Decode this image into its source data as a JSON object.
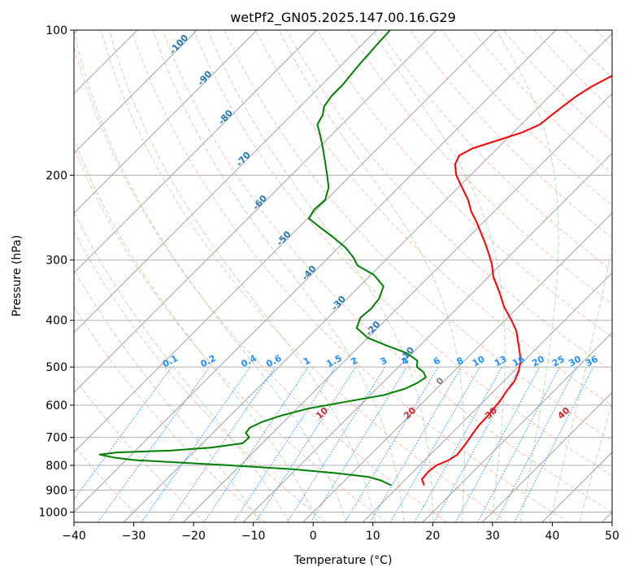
{
  "chart_data": {
    "type": "skew-t log-p",
    "title": "wetPf2_GN05.2025.147.00.16.G29",
    "xlabel": "Temperature (°C)",
    "ylabel": "Pressure (hPa)",
    "xlim": [
      -40,
      50
    ],
    "ylim_hpa": [
      1050,
      100
    ],
    "x_ticks": [
      -40,
      -30,
      -20,
      -10,
      0,
      10,
      20,
      30,
      40,
      50
    ],
    "x_tick_labels": [
      "−40",
      "−30",
      "−20",
      "−10",
      "0",
      "10",
      "20",
      "30",
      "40",
      "50"
    ],
    "y_ticks": [
      100,
      200,
      300,
      400,
      500,
      600,
      700,
      800,
      900,
      1000
    ],
    "y_tick_labels": [
      "100",
      "200",
      "300",
      "400",
      "500",
      "600",
      "700",
      "800",
      "900",
      "1000"
    ],
    "grid": true,
    "skew_slope_deg_c_per_ln_p": 35,
    "background_lines": {
      "isotherms_color": "#999999",
      "dry_adiabats_color": "#ff8c69",
      "moist_adiabats_color": "#98d098",
      "mixing_ratio_color": "#1e90ff"
    },
    "isotherm_labels": [
      {
        "text": "-100",
        "value": -100,
        "p": 108
      },
      {
        "text": "-90",
        "value": -90,
        "p": 127
      },
      {
        "text": "-80",
        "value": -80,
        "p": 153
      },
      {
        "text": "-70",
        "value": -70,
        "p": 187
      },
      {
        "text": "-60",
        "value": -60,
        "p": 230
      },
      {
        "text": "-50",
        "value": -50,
        "p": 273
      },
      {
        "text": "-40",
        "value": -40,
        "p": 322
      },
      {
        "text": "-30",
        "value": -30,
        "p": 372
      },
      {
        "text": "-20",
        "value": -20,
        "p": 420
      },
      {
        "text": "-10",
        "value": -10,
        "p": 475
      },
      {
        "text": "0",
        "value": 0,
        "p": 540
      }
    ],
    "mixing_ratio_labels": [
      {
        "text": "0.1",
        "value": 0.1
      },
      {
        "text": "0.2",
        "value": 0.2
      },
      {
        "text": "0.4",
        "value": 0.4
      },
      {
        "text": "0.6",
        "value": 0.6
      },
      {
        "text": "1",
        "value": 1
      },
      {
        "text": "1.5",
        "value": 1.5
      },
      {
        "text": "2",
        "value": 2
      },
      {
        "text": "3",
        "value": 3
      },
      {
        "text": "4",
        "value": 4
      },
      {
        "text": "6",
        "value": 6
      },
      {
        "text": "8",
        "value": 8
      },
      {
        "text": "10",
        "value": 10
      },
      {
        "text": "13",
        "value": 13
      },
      {
        "text": "16",
        "value": 16
      },
      {
        "text": "20",
        "value": 20
      },
      {
        "text": "25",
        "value": 25
      },
      {
        "text": "30",
        "value": 30
      },
      {
        "text": "36",
        "value": 36
      }
    ],
    "moist_adiabat_labels": [
      {
        "text": "10",
        "value": 10
      },
      {
        "text": "20",
        "value": 20
      },
      {
        "text": "30",
        "value": 30
      },
      {
        "text": "40",
        "value": 40
      }
    ],
    "series": [
      {
        "color": "#ff0000",
        "points": [
          [
            880,
            14.1
          ],
          [
            855,
            12.7
          ],
          [
            825,
            12.5
          ],
          [
            800,
            12.8
          ],
          [
            780,
            14.0
          ],
          [
            760,
            14.5
          ],
          [
            740,
            14.3
          ],
          [
            715,
            14.0
          ],
          [
            690,
            13.6
          ],
          [
            660,
            13.2
          ],
          [
            630,
            13.1
          ],
          [
            610,
            12.9
          ],
          [
            585,
            12.6
          ],
          [
            560,
            12.1
          ],
          [
            535,
            11.8
          ],
          [
            510,
            10.8
          ],
          [
            485,
            9.4
          ],
          [
            460,
            7.3
          ],
          [
            440,
            5.5
          ],
          [
            420,
            3.6
          ],
          [
            400,
            1.1
          ],
          [
            375,
            -2.4
          ],
          [
            350,
            -5.6
          ],
          [
            325,
            -9.2
          ],
          [
            305,
            -11.7
          ],
          [
            290,
            -14.0
          ],
          [
            275,
            -16.5
          ],
          [
            262,
            -18.9
          ],
          [
            250,
            -21.2
          ],
          [
            238,
            -23.8
          ],
          [
            225,
            -26.3
          ],
          [
            212,
            -29.4
          ],
          [
            200,
            -32.4
          ],
          [
            190,
            -34.4
          ],
          [
            182,
            -35.2
          ],
          [
            176,
            -34.2
          ],
          [
            170,
            -31.6
          ],
          [
            163,
            -28.5
          ],
          [
            157,
            -26.9
          ],
          [
            150,
            -26.5
          ],
          [
            143,
            -26.0
          ],
          [
            137,
            -25.5
          ],
          [
            131,
            -24.6
          ],
          [
            125,
            -23.1
          ],
          [
            119,
            -22.1
          ],
          [
            114,
            -19.4
          ],
          [
            109,
            -15.0
          ],
          [
            104,
            -10.9
          ],
          [
            100,
            -8.1
          ]
        ]
      },
      {
        "color": "#008000",
        "points": [
          [
            880,
            8.6
          ],
          [
            860,
            6.1
          ],
          [
            845,
            3.3
          ],
          [
            830,
            -2.8
          ],
          [
            815,
            -10.6
          ],
          [
            800,
            -21.7
          ],
          [
            790,
            -30.0
          ],
          [
            780,
            -38.6
          ],
          [
            770,
            -42.6
          ],
          [
            760,
            -45.3
          ],
          [
            752,
            -42.8
          ],
          [
            745,
            -34.0
          ],
          [
            735,
            -27.9
          ],
          [
            720,
            -23.3
          ],
          [
            700,
            -23.2
          ],
          [
            685,
            -24.5
          ],
          [
            668,
            -24.7
          ],
          [
            650,
            -23.6
          ],
          [
            630,
            -21.4
          ],
          [
            610,
            -18.2
          ],
          [
            590,
            -12.9
          ],
          [
            572,
            -7.8
          ],
          [
            555,
            -5.3
          ],
          [
            540,
            -4.2
          ],
          [
            525,
            -3.7
          ],
          [
            512,
            -5.0
          ],
          [
            500,
            -6.9
          ],
          [
            485,
            -7.9
          ],
          [
            468,
            -10.9
          ],
          [
            452,
            -15.4
          ],
          [
            435,
            -20.0
          ],
          [
            415,
            -23.5
          ],
          [
            395,
            -24.6
          ],
          [
            378,
            -24.3
          ],
          [
            360,
            -24.7
          ],
          [
            340,
            -26.0
          ],
          [
            322,
            -29.5
          ],
          [
            308,
            -33.8
          ],
          [
            296,
            -35.9
          ],
          [
            283,
            -38.7
          ],
          [
            270,
            -42.3
          ],
          [
            257,
            -46.3
          ],
          [
            246,
            -49.8
          ],
          [
            236,
            -50.4
          ],
          [
            225,
            -50.2
          ],
          [
            212,
            -51.7
          ],
          [
            200,
            -54.0
          ],
          [
            187,
            -56.7
          ],
          [
            175,
            -59.4
          ],
          [
            165,
            -61.9
          ],
          [
            157,
            -64.1
          ],
          [
            150,
            -64.8
          ],
          [
            144,
            -66.0
          ],
          [
            137,
            -66.5
          ],
          [
            130,
            -66.5
          ],
          [
            124,
            -66.8
          ],
          [
            118,
            -67.1
          ],
          [
            112,
            -67.3
          ],
          [
            107,
            -67.5
          ],
          [
            100,
            -67.7
          ]
        ]
      }
    ]
  }
}
